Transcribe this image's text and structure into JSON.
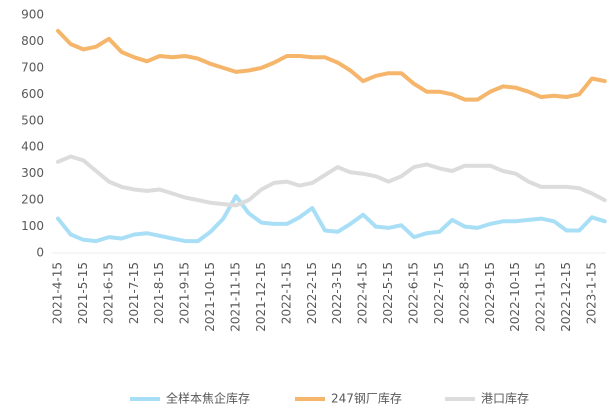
{
  "chart_data": {
    "type": "line",
    "categories": [
      "2021-4-15",
      null,
      "2021-5-15",
      null,
      "2021-6-15",
      null,
      "2021-7-15",
      null,
      "2021-8-15",
      null,
      "2021-9-15",
      null,
      "2021-10-15",
      null,
      "2021-11-15",
      null,
      "2021-12-15",
      null,
      "2022-1-15",
      null,
      "2022-2-15",
      null,
      "2022-3-15",
      null,
      "2022-4-15",
      null,
      "2022-5-15",
      null,
      "2022-6-15",
      null,
      "2022-7-15",
      null,
      "2022-8-15",
      null,
      "2022-9-15",
      null,
      "2022-10-15",
      null,
      "2022-11-15",
      null,
      "2022-12-15",
      null,
      "2023-1-15",
      null
    ],
    "series": [
      {
        "name": "全样本焦企库存",
        "color": "#a9dff6",
        "values": [
          130,
          70,
          50,
          45,
          60,
          55,
          70,
          75,
          65,
          55,
          45,
          45,
          80,
          130,
          215,
          150,
          115,
          110,
          110,
          135,
          170,
          85,
          80,
          110,
          145,
          100,
          95,
          105,
          60,
          75,
          80,
          125,
          100,
          95,
          110,
          120,
          120,
          125,
          130,
          120,
          85,
          85,
          135,
          120
        ]
      },
      {
        "name": "247钢厂库存",
        "color": "#f5b56a",
        "values": [
          840,
          790,
          770,
          780,
          810,
          760,
          740,
          725,
          745,
          740,
          745,
          735,
          715,
          700,
          685,
          690,
          700,
          720,
          745,
          745,
          740,
          740,
          720,
          690,
          650,
          670,
          680,
          680,
          640,
          610,
          610,
          600,
          580,
          580,
          610,
          630,
          625,
          610,
          590,
          595,
          590,
          600,
          660,
          650
        ]
      },
      {
        "name": "港口库存",
        "color": "#dcdcdc",
        "values": [
          345,
          365,
          350,
          310,
          270,
          250,
          240,
          235,
          240,
          225,
          210,
          200,
          190,
          185,
          180,
          200,
          240,
          265,
          270,
          255,
          265,
          295,
          325,
          305,
          300,
          290,
          270,
          290,
          325,
          335,
          320,
          310,
          330,
          330,
          330,
          310,
          300,
          270,
          250,
          250,
          250,
          245,
          225,
          200
        ]
      }
    ],
    "ylim": [
      0,
      900
    ],
    "yticks": [
      0,
      100,
      200,
      300,
      400,
      500,
      600,
      700,
      800,
      900
    ],
    "grid": false
  }
}
